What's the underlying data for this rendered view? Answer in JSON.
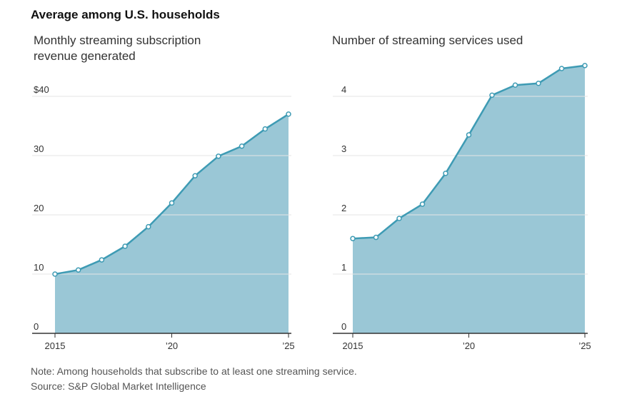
{
  "heading": "Average among U.S. households",
  "chart_data": [
    {
      "type": "area",
      "title": "Monthly streaming subscription revenue generated",
      "x": [
        2015,
        2016,
        2017,
        2018,
        2019,
        2020,
        2021,
        2022,
        2023,
        2024,
        2025
      ],
      "values": [
        10.0,
        10.7,
        12.4,
        14.7,
        18.0,
        22.0,
        26.6,
        29.9,
        31.6,
        34.5,
        37.0
      ],
      "ylim": [
        0,
        40
      ],
      "y_ticks": [
        0,
        10,
        20,
        30,
        40
      ],
      "y_tick_labels": [
        "0",
        "10",
        "20",
        "30",
        "$40"
      ],
      "x_ticks": [
        2015,
        2020,
        2025
      ],
      "x_tick_labels": [
        "2015",
        "’20",
        "’25"
      ],
      "xlabel": "",
      "ylabel": ""
    },
    {
      "type": "area",
      "title": "Number of streaming services used",
      "x": [
        2015,
        2016,
        2017,
        2018,
        2019,
        2020,
        2021,
        2022,
        2023,
        2024,
        2025
      ],
      "values": [
        1.6,
        1.62,
        1.94,
        2.18,
        2.7,
        3.35,
        4.02,
        4.19,
        4.22,
        4.47,
        4.52
      ],
      "ylim": [
        0,
        4
      ],
      "y_ticks": [
        0,
        1,
        2,
        3,
        4
      ],
      "y_tick_labels": [
        "0",
        "1",
        "2",
        "3",
        "4"
      ],
      "x_ticks": [
        2015,
        2020,
        2025
      ],
      "x_tick_labels": [
        "2015",
        "’20",
        "’25"
      ],
      "xlabel": "",
      "ylabel": ""
    }
  ],
  "colors": {
    "fill": "#9AC7D6",
    "line": "#3E9BB4",
    "grid": "#e6e6e6",
    "axis": "#333333"
  },
  "notes": {
    "note": "Note: Among households that subscribe to at least one streaming service.",
    "source": "Source: S&P Global Market Intelligence"
  }
}
